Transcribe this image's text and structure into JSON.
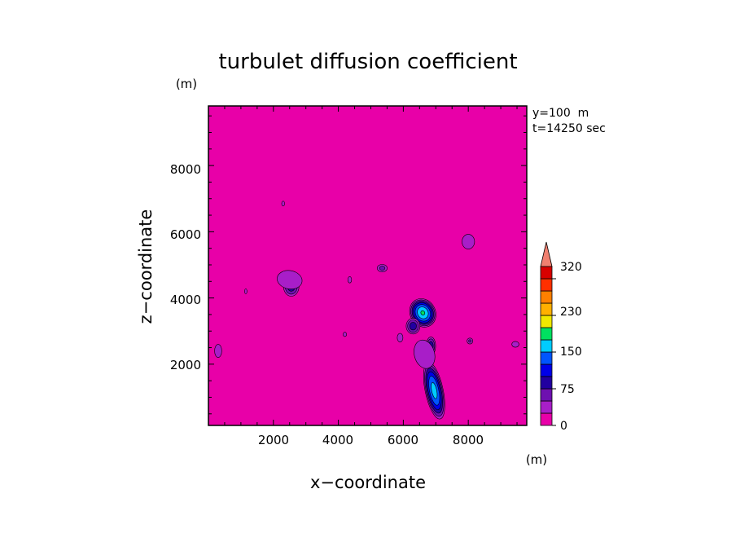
{
  "chart_data": {
    "type": "heatmap",
    "title": "turbulet diffusion coefficient",
    "xlabel": "x−coordinate",
    "ylabel": "z−coordinate",
    "x_unit": "(m)",
    "y_unit": "(m)",
    "annotations": [
      "y=100  m",
      "t=14250 sec"
    ],
    "xlim": [
      0,
      9800
    ],
    "ylim": [
      150,
      9800
    ],
    "x_ticks": [
      2000,
      4000,
      6000,
      8000
    ],
    "y_ticks": [
      2000,
      4000,
      6000,
      8000
    ],
    "x_tick_labels": [
      "2000",
      "4000",
      "6000",
      "8000"
    ],
    "y_tick_labels": [
      "2000",
      "4000",
      "6000",
      "8000"
    ],
    "background_level": 0,
    "colorbar": {
      "levels": [
        0,
        25,
        50,
        75,
        100,
        125,
        150,
        175,
        200,
        230,
        260,
        290,
        320
      ],
      "colors": [
        "#e800a8",
        "#a81ec8",
        "#6e10b0",
        "#2200a0",
        "#0000e8",
        "#0055ff",
        "#00ccff",
        "#00e060",
        "#f0e800",
        "#ffb000",
        "#ff8000",
        "#ff3000",
        "#d80000"
      ],
      "extend_color": "#f08070",
      "tick_labels": [
        "0",
        "75",
        "150",
        "230",
        "320"
      ],
      "tick_levels": [
        0,
        75,
        150,
        230,
        320
      ]
    },
    "features": [
      {
        "x": 6600,
        "z": 3550,
        "rx": 420,
        "rz": 480,
        "rot": -30,
        "peak": 175
      },
      {
        "x": 6300,
        "z": 3150,
        "rx": 250,
        "rz": 280,
        "rot": 0,
        "peak": 90
      },
      {
        "x": 6850,
        "z": 2550,
        "rx": 170,
        "rz": 320,
        "rot": 0,
        "peak": 90
      },
      {
        "x": 6950,
        "z": 1200,
        "rx": 300,
        "rz": 950,
        "rot": -12,
        "peak": 160
      },
      {
        "x": 6650,
        "z": 2300,
        "rx": 500,
        "rz": 700,
        "rot": -15,
        "peak": 40
      },
      {
        "x": 2550,
        "z": 4350,
        "rx": 280,
        "rz": 350,
        "rot": 0,
        "peak": 90
      },
      {
        "x": 2500,
        "z": 4550,
        "rx": 700,
        "rz": 500,
        "rot": 10,
        "peak": 35
      },
      {
        "x": 8000,
        "z": 5700,
        "rx": 350,
        "rz": 400,
        "rot": 0,
        "peak": 35
      },
      {
        "x": 300,
        "z": 2400,
        "rx": 250,
        "rz": 450,
        "rot": 0,
        "peak": 30
      },
      {
        "x": 9450,
        "z": 2600,
        "rx": 250,
        "rz": 200,
        "rot": 0,
        "peak": 30
      },
      {
        "x": 5350,
        "z": 4900,
        "rx": 200,
        "rz": 150,
        "rot": 0,
        "peak": 60
      },
      {
        "x": 4350,
        "z": 4550,
        "rx": 130,
        "rz": 220,
        "rot": 0,
        "peak": 30
      },
      {
        "x": 4200,
        "z": 2900,
        "rx": 120,
        "rz": 150,
        "rot": 0,
        "peak": 30
      },
      {
        "x": 8050,
        "z": 2700,
        "rx": 120,
        "rz": 120,
        "rot": 0,
        "peak": 55
      },
      {
        "x": 1150,
        "z": 4200,
        "rx": 100,
        "rz": 200,
        "rot": 0,
        "peak": 28
      },
      {
        "x": 2300,
        "z": 6850,
        "rx": 120,
        "rz": 200,
        "rot": 0,
        "peak": 28
      },
      {
        "x": 5900,
        "z": 2800,
        "rx": 200,
        "rz": 300,
        "rot": 0,
        "peak": 30
      }
    ]
  }
}
